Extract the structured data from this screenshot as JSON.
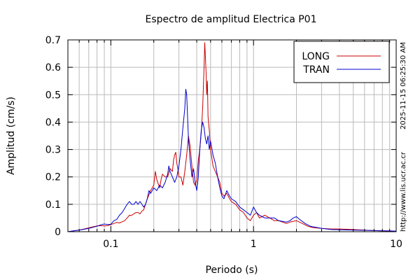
{
  "chart_data": {
    "type": "line",
    "title": "Espectro de amplitud Electrica P01",
    "xlabel": "Periodo (s)",
    "ylabel": "Amplitud (cm/s)",
    "xscale": "log",
    "xlim": [
      0.05,
      10
    ],
    "ylim": [
      0,
      0.7
    ],
    "grid": true,
    "legend_position": "top-right",
    "x_ticks": [
      {
        "value": 0.1,
        "label": "0.1"
      },
      {
        "value": 1,
        "label": "1"
      },
      {
        "value": 10,
        "label": "10"
      }
    ],
    "y_ticks": [
      {
        "value": 0,
        "label": "0"
      },
      {
        "value": 0.1,
        "label": "0.1"
      },
      {
        "value": 0.2,
        "label": "0.2"
      },
      {
        "value": 0.3,
        "label": "0.3"
      },
      {
        "value": 0.4,
        "label": "0.4"
      },
      {
        "value": 0.5,
        "label": "0.5"
      },
      {
        "value": 0.6,
        "label": "0.6"
      },
      {
        "value": 0.7,
        "label": "0.7"
      }
    ],
    "series": [
      {
        "name": "LONG",
        "color": "#cc0000",
        "points": [
          [
            0.05,
            0.0
          ],
          [
            0.055,
            0.003
          ],
          [
            0.06,
            0.006
          ],
          [
            0.065,
            0.01
          ],
          [
            0.07,
            0.014
          ],
          [
            0.075,
            0.018
          ],
          [
            0.08,
            0.021
          ],
          [
            0.085,
            0.022
          ],
          [
            0.09,
            0.021
          ],
          [
            0.095,
            0.022
          ],
          [
            0.1,
            0.026
          ],
          [
            0.105,
            0.03
          ],
          [
            0.11,
            0.034
          ],
          [
            0.115,
            0.032
          ],
          [
            0.12,
            0.036
          ],
          [
            0.125,
            0.04
          ],
          [
            0.13,
            0.05
          ],
          [
            0.135,
            0.06
          ],
          [
            0.14,
            0.06
          ],
          [
            0.15,
            0.07
          ],
          [
            0.155,
            0.07
          ],
          [
            0.16,
            0.065
          ],
          [
            0.165,
            0.075
          ],
          [
            0.17,
            0.08
          ],
          [
            0.175,
            0.1
          ],
          [
            0.18,
            0.12
          ],
          [
            0.19,
            0.15
          ],
          [
            0.2,
            0.17
          ],
          [
            0.205,
            0.22
          ],
          [
            0.21,
            0.19
          ],
          [
            0.22,
            0.16
          ],
          [
            0.225,
            0.19
          ],
          [
            0.23,
            0.21
          ],
          [
            0.24,
            0.2
          ],
          [
            0.25,
            0.2
          ],
          [
            0.26,
            0.23
          ],
          [
            0.27,
            0.22
          ],
          [
            0.275,
            0.26
          ],
          [
            0.28,
            0.28
          ],
          [
            0.285,
            0.29
          ],
          [
            0.29,
            0.25
          ],
          [
            0.295,
            0.23
          ],
          [
            0.3,
            0.2
          ],
          [
            0.31,
            0.2
          ],
          [
            0.32,
            0.17
          ],
          [
            0.33,
            0.22
          ],
          [
            0.34,
            0.28
          ],
          [
            0.35,
            0.35
          ],
          [
            0.36,
            0.31
          ],
          [
            0.37,
            0.24
          ],
          [
            0.38,
            0.18
          ],
          [
            0.39,
            0.17
          ],
          [
            0.4,
            0.19
          ],
          [
            0.41,
            0.26
          ],
          [
            0.42,
            0.3
          ],
          [
            0.43,
            0.36
          ],
          [
            0.44,
            0.45
          ],
          [
            0.45,
            0.6
          ],
          [
            0.455,
            0.69
          ],
          [
            0.46,
            0.64
          ],
          [
            0.465,
            0.58
          ],
          [
            0.47,
            0.5
          ],
          [
            0.475,
            0.55
          ],
          [
            0.48,
            0.42
          ],
          [
            0.49,
            0.37
          ],
          [
            0.5,
            0.3
          ],
          [
            0.51,
            0.27
          ],
          [
            0.52,
            0.24
          ],
          [
            0.54,
            0.22
          ],
          [
            0.56,
            0.2
          ],
          [
            0.58,
            0.18
          ],
          [
            0.6,
            0.14
          ],
          [
            0.62,
            0.13
          ],
          [
            0.65,
            0.14
          ],
          [
            0.68,
            0.12
          ],
          [
            0.7,
            0.11
          ],
          [
            0.75,
            0.1
          ],
          [
            0.8,
            0.08
          ],
          [
            0.85,
            0.07
          ],
          [
            0.9,
            0.05
          ],
          [
            0.95,
            0.04
          ],
          [
            1.0,
            0.06
          ],
          [
            1.05,
            0.07
          ],
          [
            1.1,
            0.05
          ],
          [
            1.2,
            0.06
          ],
          [
            1.3,
            0.05
          ],
          [
            1.4,
            0.04
          ],
          [
            1.5,
            0.04
          ],
          [
            1.7,
            0.03
          ],
          [
            1.8,
            0.035
          ],
          [
            2.0,
            0.04
          ],
          [
            2.1,
            0.035
          ],
          [
            2.2,
            0.03
          ],
          [
            2.4,
            0.02
          ],
          [
            2.6,
            0.015
          ],
          [
            3.0,
            0.012
          ],
          [
            3.5,
            0.01
          ],
          [
            4.0,
            0.01
          ],
          [
            5.0,
            0.008
          ],
          [
            6.0,
            0.006
          ],
          [
            7.0,
            0.004
          ],
          [
            8.0,
            0.003
          ],
          [
            9.0,
            0.002
          ],
          [
            10.0,
            0.002
          ]
        ]
      },
      {
        "name": "TRAN",
        "color": "#0000cc",
        "points": [
          [
            0.05,
            0.0
          ],
          [
            0.055,
            0.003
          ],
          [
            0.06,
            0.006
          ],
          [
            0.065,
            0.009
          ],
          [
            0.07,
            0.012
          ],
          [
            0.075,
            0.016
          ],
          [
            0.08,
            0.02
          ],
          [
            0.085,
            0.025
          ],
          [
            0.09,
            0.028
          ],
          [
            0.095,
            0.026
          ],
          [
            0.1,
            0.027
          ],
          [
            0.105,
            0.04
          ],
          [
            0.11,
            0.045
          ],
          [
            0.115,
            0.06
          ],
          [
            0.12,
            0.07
          ],
          [
            0.125,
            0.085
          ],
          [
            0.13,
            0.1
          ],
          [
            0.135,
            0.11
          ],
          [
            0.14,
            0.1
          ],
          [
            0.145,
            0.1
          ],
          [
            0.15,
            0.11
          ],
          [
            0.155,
            0.1
          ],
          [
            0.16,
            0.11
          ],
          [
            0.165,
            0.1
          ],
          [
            0.17,
            0.09
          ],
          [
            0.175,
            0.1
          ],
          [
            0.18,
            0.12
          ],
          [
            0.185,
            0.15
          ],
          [
            0.19,
            0.14
          ],
          [
            0.2,
            0.16
          ],
          [
            0.21,
            0.15
          ],
          [
            0.22,
            0.17
          ],
          [
            0.23,
            0.16
          ],
          [
            0.24,
            0.18
          ],
          [
            0.25,
            0.21
          ],
          [
            0.255,
            0.24
          ],
          [
            0.26,
            0.22
          ],
          [
            0.27,
            0.2
          ],
          [
            0.28,
            0.18
          ],
          [
            0.29,
            0.2
          ],
          [
            0.3,
            0.24
          ],
          [
            0.31,
            0.3
          ],
          [
            0.32,
            0.38
          ],
          [
            0.33,
            0.45
          ],
          [
            0.335,
            0.52
          ],
          [
            0.34,
            0.5
          ],
          [
            0.35,
            0.34
          ],
          [
            0.36,
            0.26
          ],
          [
            0.37,
            0.2
          ],
          [
            0.38,
            0.23
          ],
          [
            0.39,
            0.18
          ],
          [
            0.4,
            0.15
          ],
          [
            0.41,
            0.2
          ],
          [
            0.42,
            0.3
          ],
          [
            0.43,
            0.37
          ],
          [
            0.44,
            0.4
          ],
          [
            0.45,
            0.38
          ],
          [
            0.46,
            0.34
          ],
          [
            0.47,
            0.32
          ],
          [
            0.48,
            0.35
          ],
          [
            0.49,
            0.3
          ],
          [
            0.5,
            0.33
          ],
          [
            0.52,
            0.28
          ],
          [
            0.54,
            0.25
          ],
          [
            0.56,
            0.2
          ],
          [
            0.58,
            0.16
          ],
          [
            0.6,
            0.13
          ],
          [
            0.62,
            0.12
          ],
          [
            0.65,
            0.15
          ],
          [
            0.68,
            0.13
          ],
          [
            0.7,
            0.12
          ],
          [
            0.75,
            0.11
          ],
          [
            0.8,
            0.09
          ],
          [
            0.85,
            0.08
          ],
          [
            0.9,
            0.07
          ],
          [
            0.95,
            0.06
          ],
          [
            1.0,
            0.09
          ],
          [
            1.05,
            0.07
          ],
          [
            1.1,
            0.06
          ],
          [
            1.2,
            0.05
          ],
          [
            1.3,
            0.05
          ],
          [
            1.4,
            0.05
          ],
          [
            1.5,
            0.04
          ],
          [
            1.7,
            0.035
          ],
          [
            1.8,
            0.04
          ],
          [
            1.9,
            0.05
          ],
          [
            2.0,
            0.055
          ],
          [
            2.1,
            0.045
          ],
          [
            2.3,
            0.03
          ],
          [
            2.5,
            0.02
          ],
          [
            3.0,
            0.012
          ],
          [
            3.5,
            0.008
          ],
          [
            4.0,
            0.007
          ],
          [
            5.0,
            0.006
          ],
          [
            6.0,
            0.005
          ],
          [
            7.0,
            0.004
          ],
          [
            8.0,
            0.003
          ],
          [
            9.0,
            0.003
          ],
          [
            10.0,
            0.002
          ]
        ]
      }
    ]
  },
  "side_labels": {
    "timestamp": "2025-11-15 06:25:30 AM",
    "url": "http://www.lis.ucr.ac.cr"
  }
}
